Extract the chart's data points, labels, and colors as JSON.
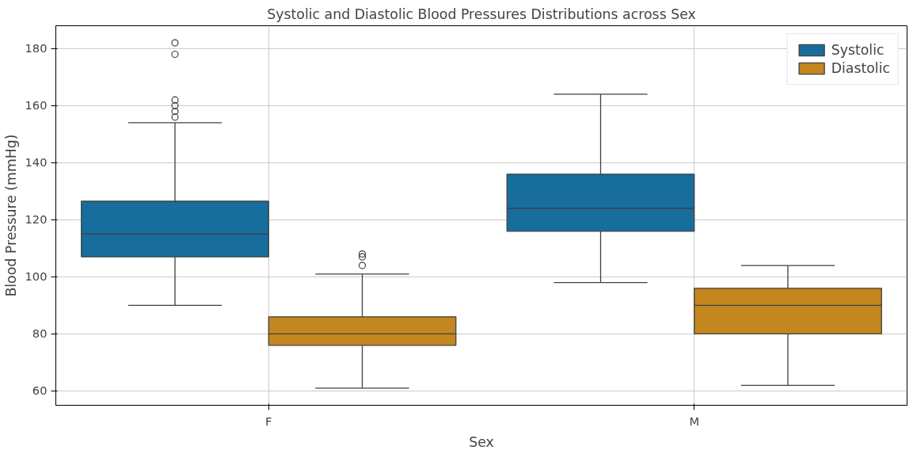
{
  "chart_data": {
    "type": "box",
    "title": "Systolic and Diastolic Blood Pressures Distributions across Sex",
    "xlabel": "Sex",
    "ylabel": "Blood Pressure (mmHg)",
    "categories": [
      "F",
      "M"
    ],
    "series": [
      {
        "name": "Systolic",
        "color": "#176d9c",
        "boxes": [
          {
            "low": 90,
            "q1": 107,
            "median": 115,
            "q3": 126.5,
            "high": 154,
            "outliers": [
              156,
              158,
              160,
              162,
              178,
              182
            ]
          },
          {
            "low": 98,
            "q1": 116,
            "median": 124,
            "q3": 136,
            "high": 164
          }
        ]
      },
      {
        "name": "Diastolic",
        "color": "#c4861f",
        "boxes": [
          {
            "low": 61,
            "q1": 76,
            "median": 80,
            "q3": 86,
            "high": 101,
            "outliers": [
              104,
              107,
              108
            ]
          },
          {
            "low": 62,
            "q1": 80,
            "median": 90,
            "q3": 96,
            "high": 104
          }
        ]
      }
    ],
    "ylim": [
      55,
      188
    ],
    "yticks": [
      60,
      80,
      100,
      120,
      140,
      160,
      180
    ],
    "grid": true,
    "legend": "top right"
  }
}
